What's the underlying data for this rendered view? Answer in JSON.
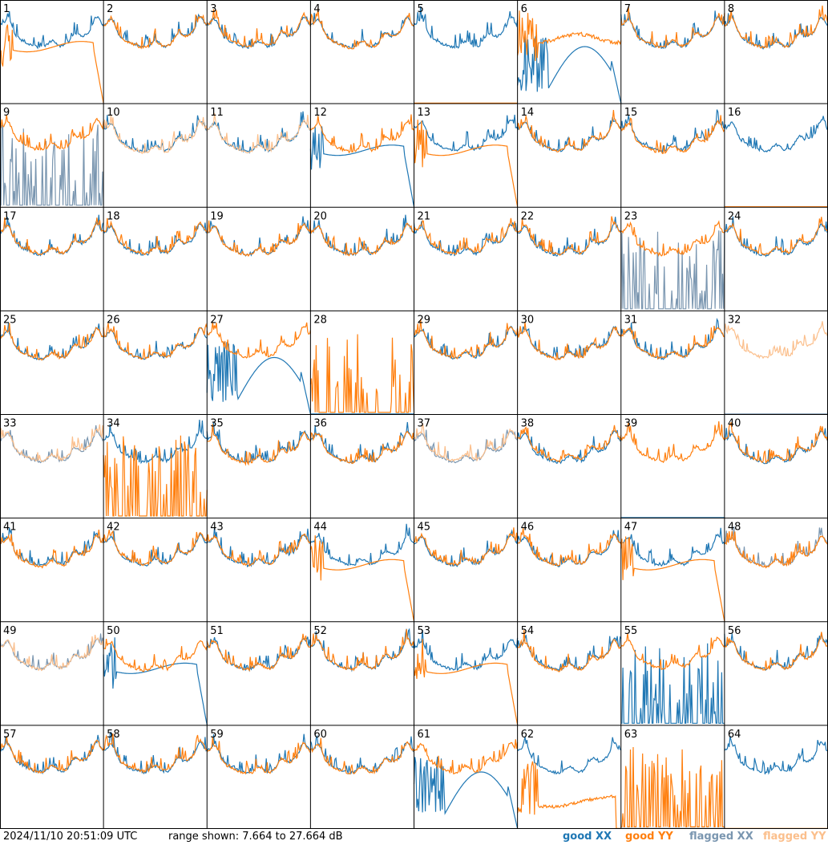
{
  "timestamp": "2024/11/10 20:51:09 UTC",
  "range_text": "range shown: 7.664 to 27.664 dB",
  "legend": {
    "good_xx": "good XX",
    "good_yy": "good YY",
    "flagged_xx": "flagged XX",
    "flagged_yy": "flagged YY"
  },
  "colors": {
    "good_xx": "#1f77b4",
    "good_yy": "#ff7f0e",
    "flagged_xx": "#7a96b0",
    "flagged_yy": "#fbbf8c"
  },
  "chart_data": {
    "type": "line",
    "layout": "small-multiples 8x8",
    "ylim": [
      7.664,
      27.664
    ],
    "yunit": "dB",
    "panels": [
      {
        "id": "1",
        "xx": "good",
        "yy": "good",
        "yy_shape": "rolloff",
        "xx_shape": "normal"
      },
      {
        "id": "2",
        "xx": "good",
        "yy": "good"
      },
      {
        "id": "3",
        "xx": "good",
        "yy": "good"
      },
      {
        "id": "4",
        "xx": "good",
        "yy": "good"
      },
      {
        "id": "5",
        "xx": "good",
        "yy": "good",
        "xx_shape": "normal",
        "yy_shape": "dead"
      },
      {
        "id": "6",
        "xx": "good",
        "yy": "good",
        "xx_shape": "hump",
        "yy_shape": "flat"
      },
      {
        "id": "7",
        "xx": "good",
        "yy": "good"
      },
      {
        "id": "8",
        "xx": "good",
        "yy": "good"
      },
      {
        "id": "9",
        "xx": "flagged",
        "yy": "good",
        "xx_shape": "spiky"
      },
      {
        "id": "10",
        "xx": "good",
        "yy": "flagged"
      },
      {
        "id": "11",
        "xx": "good",
        "yy": "flagged"
      },
      {
        "id": "12",
        "xx": "good",
        "yy": "good",
        "xx_shape": "rolloff"
      },
      {
        "id": "13",
        "xx": "good",
        "yy": "good",
        "yy_shape": "rolloff"
      },
      {
        "id": "14",
        "xx": "good",
        "yy": "good"
      },
      {
        "id": "15",
        "xx": "good",
        "yy": "good"
      },
      {
        "id": "16",
        "xx": "good",
        "yy": "good",
        "yy_shape": "dead"
      },
      {
        "id": "17",
        "xx": "good",
        "yy": "good"
      },
      {
        "id": "18",
        "xx": "good",
        "yy": "good"
      },
      {
        "id": "19",
        "xx": "good",
        "yy": "good"
      },
      {
        "id": "20",
        "xx": "good",
        "yy": "good"
      },
      {
        "id": "21",
        "xx": "good",
        "yy": "good"
      },
      {
        "id": "22",
        "xx": "good",
        "yy": "good"
      },
      {
        "id": "23",
        "xx": "flagged",
        "yy": "good",
        "xx_shape": "spiky"
      },
      {
        "id": "24",
        "xx": "good",
        "yy": "good"
      },
      {
        "id": "25",
        "xx": "good",
        "yy": "good"
      },
      {
        "id": "26",
        "xx": "good",
        "yy": "good"
      },
      {
        "id": "27",
        "xx": "good",
        "yy": "good",
        "xx_shape": "hump"
      },
      {
        "id": "28",
        "xx": "good",
        "yy": "good",
        "xx_shape": "dead",
        "yy_shape": "spiky"
      },
      {
        "id": "29",
        "xx": "good",
        "yy": "good"
      },
      {
        "id": "30",
        "xx": "good",
        "yy": "good"
      },
      {
        "id": "31",
        "xx": "good",
        "yy": "good"
      },
      {
        "id": "32",
        "xx": "flagged",
        "yy": "flagged",
        "xx_shape": "dead"
      },
      {
        "id": "33",
        "xx": "flagged",
        "yy": "flagged"
      },
      {
        "id": "34",
        "xx": "good",
        "yy": "good",
        "yy_shape": "spiky"
      },
      {
        "id": "35",
        "xx": "good",
        "yy": "good"
      },
      {
        "id": "36",
        "xx": "good",
        "yy": "good"
      },
      {
        "id": "37",
        "xx": "flagged",
        "yy": "flagged"
      },
      {
        "id": "38",
        "xx": "good",
        "yy": "good"
      },
      {
        "id": "39",
        "xx": "good",
        "yy": "good",
        "xx_shape": "dead"
      },
      {
        "id": "40",
        "xx": "good",
        "yy": "good"
      },
      {
        "id": "41",
        "xx": "good",
        "yy": "good"
      },
      {
        "id": "42",
        "xx": "good",
        "yy": "good"
      },
      {
        "id": "43",
        "xx": "good",
        "yy": "good"
      },
      {
        "id": "44",
        "xx": "good",
        "yy": "good",
        "yy_shape": "rolloff"
      },
      {
        "id": "45",
        "xx": "good",
        "yy": "good"
      },
      {
        "id": "46",
        "xx": "good",
        "yy": "good"
      },
      {
        "id": "47",
        "xx": "good",
        "yy": "good",
        "yy_shape": "rolloff"
      },
      {
        "id": "48",
        "xx": "flagged",
        "yy": "good"
      },
      {
        "id": "49",
        "xx": "flagged",
        "yy": "flagged"
      },
      {
        "id": "50",
        "xx": "good",
        "yy": "good",
        "xx_shape": "rolloff"
      },
      {
        "id": "51",
        "xx": "good",
        "yy": "good"
      },
      {
        "id": "52",
        "xx": "good",
        "yy": "good"
      },
      {
        "id": "53",
        "xx": "good",
        "yy": "good",
        "yy_shape": "rolloff"
      },
      {
        "id": "54",
        "xx": "good",
        "yy": "good"
      },
      {
        "id": "55",
        "xx": "good",
        "yy": "good",
        "xx_shape": "spiky"
      },
      {
        "id": "56",
        "xx": "good",
        "yy": "good"
      },
      {
        "id": "57",
        "xx": "good",
        "yy": "good"
      },
      {
        "id": "58",
        "xx": "good",
        "yy": "good"
      },
      {
        "id": "59",
        "xx": "good",
        "yy": "good"
      },
      {
        "id": "60",
        "xx": "good",
        "yy": "good"
      },
      {
        "id": "61",
        "xx": "good",
        "yy": "good",
        "xx_shape": "hump"
      },
      {
        "id": "62",
        "xx": "good",
        "yy": "good",
        "yy_shape": "low"
      },
      {
        "id": "63",
        "xx": "good",
        "yy": "good",
        "xx_shape": "dead",
        "yy_shape": "spiky"
      },
      {
        "id": "64",
        "xx": "good",
        "yy": "good",
        "yy_shape": "dead"
      }
    ]
  }
}
